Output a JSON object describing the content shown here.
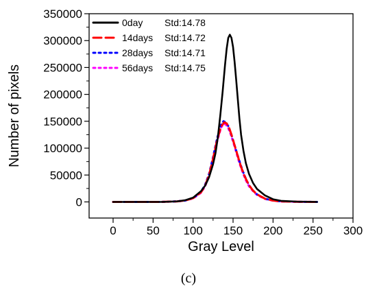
{
  "panel_label": "(c)",
  "chart_data": {
    "type": "line",
    "xlabel": "Gray Level",
    "ylabel": "Number of pixels",
    "xlim": [
      -30,
      300
    ],
    "ylim": [
      -30000,
      350000
    ],
    "xticks": [
      0,
      50,
      100,
      150,
      200,
      250,
      300
    ],
    "yticks": [
      0,
      50000,
      100000,
      150000,
      200000,
      250000,
      300000,
      350000
    ],
    "grid": false,
    "legend_position": "top-left",
    "series": [
      {
        "name": "0day",
        "std_label": "Std:14.78",
        "color": "#000000",
        "style": "solid",
        "x": [
          0,
          60,
          80,
          90,
          100,
          110,
          115,
          120,
          125,
          128,
          131,
          134,
          137,
          140,
          142,
          144,
          146,
          148,
          150,
          152,
          154,
          156,
          158,
          160,
          163,
          166,
          170,
          175,
          180,
          190,
          200,
          210,
          230,
          255
        ],
        "y": [
          0,
          0,
          1000,
          3000,
          8000,
          20000,
          30000,
          46000,
          70000,
          90000,
          120000,
          160000,
          205000,
          255000,
          285000,
          305000,
          311000,
          305000,
          288000,
          260000,
          225000,
          190000,
          155000,
          125000,
          95000,
          72000,
          52000,
          35000,
          24000,
          12000,
          5000,
          2000,
          500,
          0
        ]
      },
      {
        "name": "14days",
        "std_label": "Std:14.72",
        "color": "#ff0000",
        "style": "dashed",
        "x": [
          0,
          60,
          80,
          90,
          100,
          110,
          115,
          120,
          125,
          130,
          135,
          139,
          142,
          145,
          148,
          152,
          156,
          160,
          165,
          170,
          175,
          180,
          190,
          200,
          210,
          230,
          255
        ],
        "y": [
          0,
          0,
          1000,
          2500,
          7000,
          18000,
          30000,
          50000,
          80000,
          115000,
          140000,
          148000,
          146000,
          138000,
          125000,
          105000,
          85000,
          65000,
          46000,
          31000,
          21000,
          14000,
          6000,
          2500,
          1000,
          200,
          0
        ]
      },
      {
        "name": "28days",
        "std_label": "Std:14.71",
        "color": "#0000ff",
        "style": "dotted",
        "x": [
          0,
          60,
          80,
          90,
          100,
          110,
          115,
          120,
          125,
          130,
          135,
          138,
          141,
          144,
          147,
          150,
          154,
          158,
          162,
          166,
          170,
          175,
          180,
          190,
          200,
          210,
          230,
          255
        ],
        "y": [
          0,
          0,
          1000,
          2500,
          7000,
          19000,
          32000,
          52000,
          83000,
          118000,
          143000,
          150000,
          148000,
          141000,
          129000,
          115000,
          95000,
          76000,
          58000,
          43000,
          31000,
          21000,
          14000,
          6000,
          2500,
          1000,
          200,
          0
        ]
      },
      {
        "name": "56days",
        "std_label": "Std:14.75",
        "color": "#ff00ff",
        "style": "dotted",
        "x": [
          0,
          60,
          80,
          90,
          100,
          110,
          115,
          120,
          125,
          130,
          135,
          138,
          141,
          144,
          147,
          150,
          154,
          158,
          162,
          166,
          170,
          175,
          180,
          190,
          200,
          210,
          230,
          255
        ],
        "y": [
          0,
          0,
          1000,
          2500,
          6500,
          17000,
          29000,
          48000,
          78000,
          112000,
          138000,
          145000,
          144000,
          137000,
          126000,
          112000,
          92000,
          72000,
          55000,
          40000,
          29000,
          20000,
          13000,
          5500,
          2200,
          900,
          200,
          0
        ]
      }
    ]
  }
}
